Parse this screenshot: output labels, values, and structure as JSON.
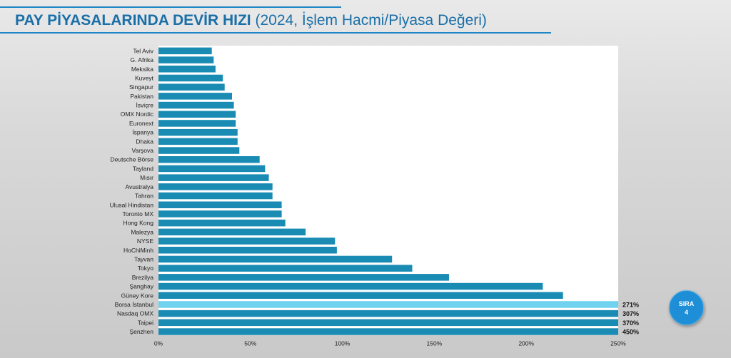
{
  "title": {
    "bold": "PAY PİYASALARINDA DEVİR HIZI",
    "normal": "(2024, İşlem Hacmi/Piyasa Değeri)"
  },
  "badge": {
    "line1": "SIRA",
    "line2": "4"
  },
  "colors": {
    "bar": "#1a8cb4",
    "highlight": "#6fd3f0",
    "title": "#1a6fa8"
  },
  "chart_data": {
    "type": "bar",
    "orientation": "horizontal",
    "title": "PAY PİYASALARINDA DEVİR HIZI (2024, İşlem Hacmi/Piyasa Değeri)",
    "categories": [
      "Tel Aviv",
      "G. Afrika",
      "Meksika",
      "Kuveyt",
      "Singapur",
      "Pakistan",
      "İsviçre",
      "OMX Nordic",
      "Euronext",
      "İspanya",
      "Dhaka",
      "Varşova",
      "Deutsche Börse",
      "Tayland",
      "Mısır",
      "Avustralya",
      "Tahran",
      "Ulusal Hindistan",
      "Toronto MX",
      "Hong Kong",
      "Malezya",
      "NYSE",
      "HoChiMinh",
      "Tayvan",
      "Tokyo",
      "Brezilya",
      "Şanghay",
      "Güney Kore",
      "Borsa İstanbul",
      "Nasdaq OMX",
      "Taipei",
      "Şenzhen"
    ],
    "values": [
      29,
      30,
      31,
      35,
      36,
      40,
      41,
      42,
      42,
      43,
      43,
      44,
      55,
      58,
      60,
      62,
      62,
      67,
      67,
      69,
      80,
      96,
      97,
      127,
      138,
      158,
      209,
      220,
      271,
      307,
      370,
      450
    ],
    "value_labels": [
      "",
      "",
      "",
      "",
      "",
      "",
      "",
      "",
      "",
      "",
      "",
      "",
      "",
      "",
      "",
      "",
      "",
      "",
      "",
      "",
      "",
      "",
      "",
      "",
      "",
      "",
      "",
      "",
      "271%",
      "307%",
      "370%",
      "450%"
    ],
    "highlight": "Borsa İstanbul",
    "xlim": [
      0,
      250
    ],
    "xticks": [
      "0%",
      "50%",
      "100%",
      "150%",
      "200%",
      "250%"
    ],
    "grid": false,
    "legend": "none"
  }
}
